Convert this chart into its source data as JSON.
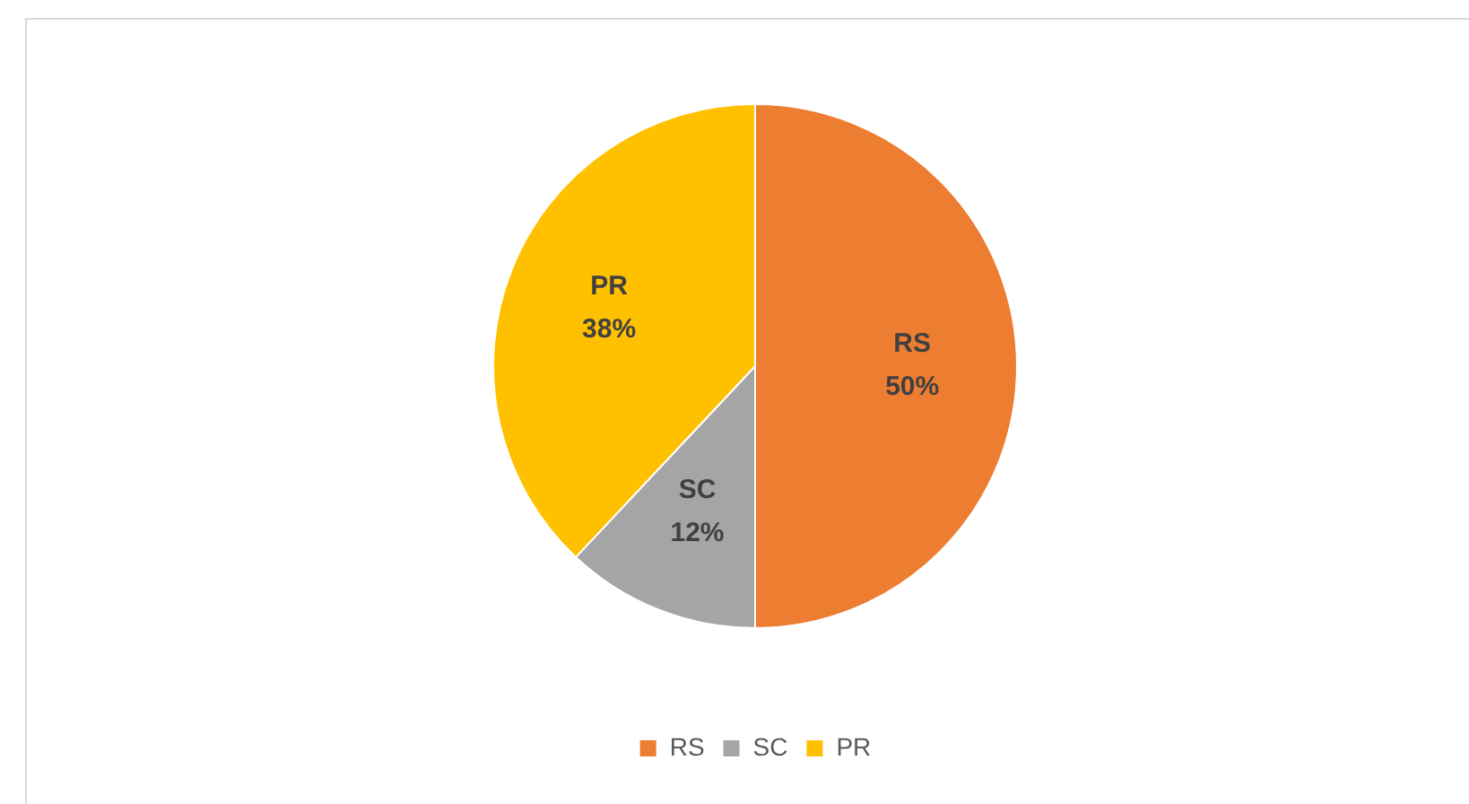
{
  "chart_data": {
    "type": "pie",
    "categories": [
      "RS",
      "SC",
      "PR"
    ],
    "values": [
      50,
      12,
      38
    ],
    "colors": [
      "#ed7d31",
      "#a5a5a5",
      "#ffc000"
    ],
    "value_labels": [
      "50%",
      "12%",
      "38%"
    ],
    "legend": "bottom"
  }
}
